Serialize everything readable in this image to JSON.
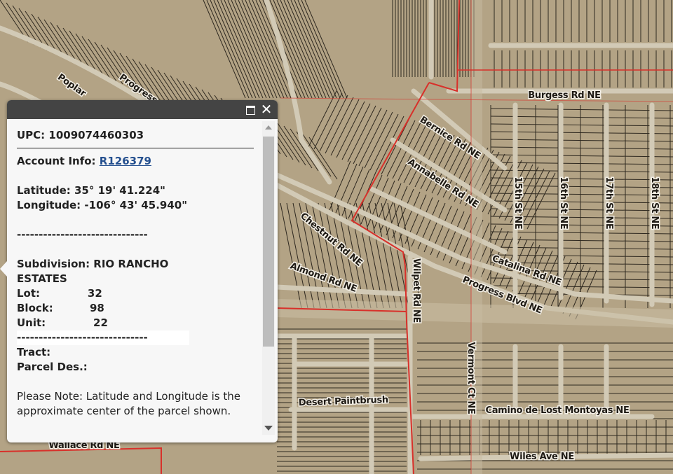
{
  "map": {
    "road_labels": [
      "Burgess Rd NE",
      "Bernice Rd NE",
      "Annabelle Rd NE",
      "15th St NE",
      "16th St NE",
      "17th St NE",
      "18th St NE",
      "Chestnut Rd NE",
      "Almond Rd NE",
      "Catalina Rd NE",
      "Progress Blvd NE",
      "Wilpet Rd NE",
      "Vermont Ct NE",
      "Camino de Lost Montoyas NE",
      "Wiles Ave NE",
      "Desert Paintbrush",
      "Progress",
      "Poplar",
      "Wallace Rd NE"
    ],
    "colors": {
      "terrain": "#b3a385",
      "road": "#d2cab6",
      "parcel_line": "#2e281f",
      "boundary": "#d8302a"
    }
  },
  "popup": {
    "upc_label": "UPC:",
    "upc": "1009074460303",
    "account_label": "Account Info:",
    "account": "R126379",
    "latitude": "Latitude: 35° 19' 41.224\"",
    "longitude": "Longitude: -106° 43' 45.940\"",
    "dashes": "------------------------------",
    "subdivision": "Subdivision: RIO RANCHO ESTATES",
    "lot": "Lot:             32",
    "block": "Block:          98",
    "unit": "Unit:             22",
    "tract": "Tract:",
    "parcel_des": "Parcel Des.:",
    "note": "Please Note: Latitude and Longitude is the approximate center of the parcel shown.",
    "maximize_icon": "maximize-icon",
    "close_icon": "close-icon"
  }
}
